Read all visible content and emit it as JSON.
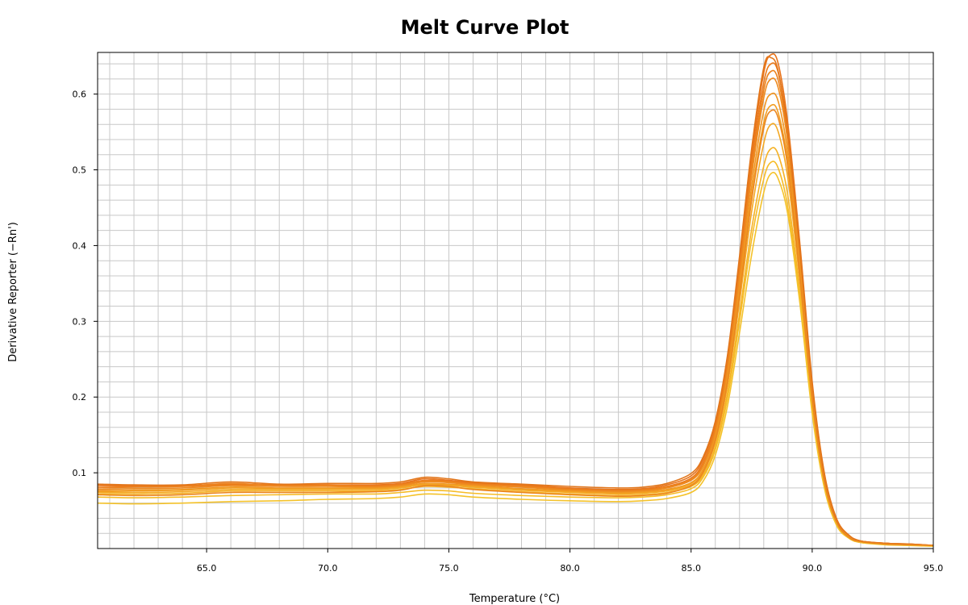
{
  "chart_data": {
    "type": "line",
    "title": "Melt Curve Plot",
    "xlabel": "Temperature (°C)",
    "ylabel": "Derivative Reporter (−Rn')",
    "xlim": [
      60.5,
      95.0
    ],
    "ylim": [
      0.0,
      0.655
    ],
    "grid": true,
    "legend": "none",
    "x_ticks": [
      "65.0",
      "70.0",
      "75.0",
      "80.0",
      "85.0",
      "90.0",
      "95.0"
    ],
    "y_ticks": [
      "0.1",
      "0.2",
      "0.3",
      "0.4",
      "0.5",
      "0.6"
    ],
    "series_colors": [
      "#e8731a",
      "#ea7a1c",
      "#ec821d",
      "#ee8a1f",
      "#f09421",
      "#f29e22",
      "#f4a824",
      "#f5b226",
      "#f6bc28",
      "#f4c22a",
      "#e2761b",
      "#eb8620"
    ],
    "x": [
      60.5,
      62.0,
      64.0,
      66.0,
      68.0,
      70.0,
      72.0,
      73.0,
      74.0,
      75.0,
      76.0,
      78.0,
      80.0,
      82.0,
      83.0,
      84.0,
      85.0,
      85.5,
      86.0,
      86.5,
      87.0,
      87.5,
      88.0,
      88.3,
      88.6,
      89.0,
      89.5,
      90.0,
      90.5,
      91.0,
      91.5,
      92.0,
      93.0,
      94.0,
      95.0
    ],
    "series": [
      {
        "values": [
          0.084,
          0.083,
          0.083,
          0.085,
          0.084,
          0.084,
          0.084,
          0.086,
          0.092,
          0.09,
          0.087,
          0.084,
          0.08,
          0.078,
          0.079,
          0.084,
          0.096,
          0.118,
          0.165,
          0.25,
          0.38,
          0.52,
          0.628,
          0.652,
          0.64,
          0.56,
          0.4,
          0.22,
          0.1,
          0.04,
          0.018,
          0.01,
          0.007,
          0.006,
          0.004
        ]
      },
      {
        "values": [
          0.082,
          0.082,
          0.082,
          0.084,
          0.084,
          0.084,
          0.083,
          0.085,
          0.09,
          0.089,
          0.086,
          0.083,
          0.079,
          0.077,
          0.078,
          0.082,
          0.093,
          0.114,
          0.16,
          0.245,
          0.372,
          0.51,
          0.615,
          0.64,
          0.628,
          0.55,
          0.392,
          0.215,
          0.098,
          0.039,
          0.018,
          0.01,
          0.007,
          0.006,
          0.004
        ]
      },
      {
        "values": [
          0.08,
          0.081,
          0.082,
          0.086,
          0.083,
          0.083,
          0.082,
          0.084,
          0.089,
          0.088,
          0.085,
          0.082,
          0.078,
          0.076,
          0.077,
          0.081,
          0.091,
          0.111,
          0.156,
          0.24,
          0.365,
          0.5,
          0.605,
          0.63,
          0.618,
          0.542,
          0.386,
          0.212,
          0.096,
          0.038,
          0.017,
          0.01,
          0.007,
          0.005,
          0.004
        ]
      },
      {
        "values": [
          0.078,
          0.079,
          0.08,
          0.083,
          0.082,
          0.082,
          0.081,
          0.083,
          0.088,
          0.087,
          0.084,
          0.081,
          0.077,
          0.075,
          0.076,
          0.08,
          0.09,
          0.109,
          0.153,
          0.235,
          0.358,
          0.492,
          0.595,
          0.62,
          0.608,
          0.534,
          0.38,
          0.208,
          0.094,
          0.037,
          0.017,
          0.009,
          0.007,
          0.005,
          0.004
        ]
      },
      {
        "values": [
          0.076,
          0.077,
          0.078,
          0.081,
          0.08,
          0.08,
          0.08,
          0.082,
          0.086,
          0.085,
          0.083,
          0.079,
          0.076,
          0.074,
          0.075,
          0.078,
          0.087,
          0.105,
          0.148,
          0.228,
          0.348,
          0.478,
          0.578,
          0.6,
          0.59,
          0.52,
          0.37,
          0.202,
          0.091,
          0.036,
          0.016,
          0.009,
          0.006,
          0.005,
          0.004
        ]
      },
      {
        "values": [
          0.075,
          0.076,
          0.077,
          0.08,
          0.079,
          0.079,
          0.079,
          0.081,
          0.085,
          0.084,
          0.082,
          0.078,
          0.075,
          0.073,
          0.074,
          0.077,
          0.086,
          0.103,
          0.145,
          0.224,
          0.34,
          0.466,
          0.562,
          0.585,
          0.575,
          0.508,
          0.362,
          0.198,
          0.089,
          0.035,
          0.016,
          0.009,
          0.006,
          0.005,
          0.004
        ]
      },
      {
        "values": [
          0.074,
          0.074,
          0.075,
          0.078,
          0.078,
          0.078,
          0.078,
          0.08,
          0.084,
          0.083,
          0.081,
          0.077,
          0.074,
          0.072,
          0.073,
          0.076,
          0.084,
          0.1,
          0.14,
          0.215,
          0.326,
          0.445,
          0.535,
          0.56,
          0.55,
          0.488,
          0.35,
          0.192,
          0.087,
          0.034,
          0.015,
          0.009,
          0.006,
          0.005,
          0.004
        ]
      },
      {
        "values": [
          0.072,
          0.072,
          0.073,
          0.076,
          0.076,
          0.076,
          0.076,
          0.078,
          0.082,
          0.081,
          0.079,
          0.075,
          0.072,
          0.07,
          0.071,
          0.074,
          0.082,
          0.097,
          0.134,
          0.205,
          0.31,
          0.422,
          0.505,
          0.528,
          0.52,
          0.465,
          0.336,
          0.186,
          0.085,
          0.033,
          0.015,
          0.008,
          0.006,
          0.005,
          0.004
        ]
      },
      {
        "values": [
          0.068,
          0.067,
          0.068,
          0.07,
          0.071,
          0.072,
          0.072,
          0.074,
          0.077,
          0.076,
          0.073,
          0.07,
          0.068,
          0.067,
          0.068,
          0.071,
          0.079,
          0.094,
          0.13,
          0.198,
          0.3,
          0.408,
          0.488,
          0.51,
          0.502,
          0.45,
          0.328,
          0.182,
          0.083,
          0.032,
          0.014,
          0.008,
          0.006,
          0.005,
          0.004
        ]
      },
      {
        "values": [
          0.06,
          0.059,
          0.06,
          0.062,
          0.063,
          0.065,
          0.066,
          0.068,
          0.072,
          0.071,
          0.068,
          0.065,
          0.063,
          0.062,
          0.063,
          0.066,
          0.074,
          0.089,
          0.123,
          0.188,
          0.285,
          0.388,
          0.47,
          0.495,
          0.488,
          0.44,
          0.322,
          0.178,
          0.08,
          0.031,
          0.014,
          0.008,
          0.005,
          0.004,
          0.003
        ]
      },
      {
        "values": [
          0.085,
          0.084,
          0.084,
          0.088,
          0.085,
          0.086,
          0.086,
          0.088,
          0.094,
          0.092,
          0.088,
          0.085,
          0.082,
          0.08,
          0.081,
          0.086,
          0.099,
          0.121,
          0.168,
          0.255,
          0.386,
          0.528,
          0.635,
          0.648,
          0.63,
          0.548,
          0.392,
          0.216,
          0.098,
          0.039,
          0.018,
          0.01,
          0.007,
          0.006,
          0.004
        ]
      },
      {
        "values": [
          0.071,
          0.07,
          0.071,
          0.074,
          0.074,
          0.074,
          0.075,
          0.077,
          0.083,
          0.082,
          0.078,
          0.074,
          0.071,
          0.069,
          0.07,
          0.073,
          0.083,
          0.101,
          0.143,
          0.22,
          0.335,
          0.46,
          0.555,
          0.578,
          0.568,
          0.502,
          0.358,
          0.196,
          0.088,
          0.035,
          0.015,
          0.009,
          0.006,
          0.005,
          0.004
        ]
      }
    ]
  }
}
